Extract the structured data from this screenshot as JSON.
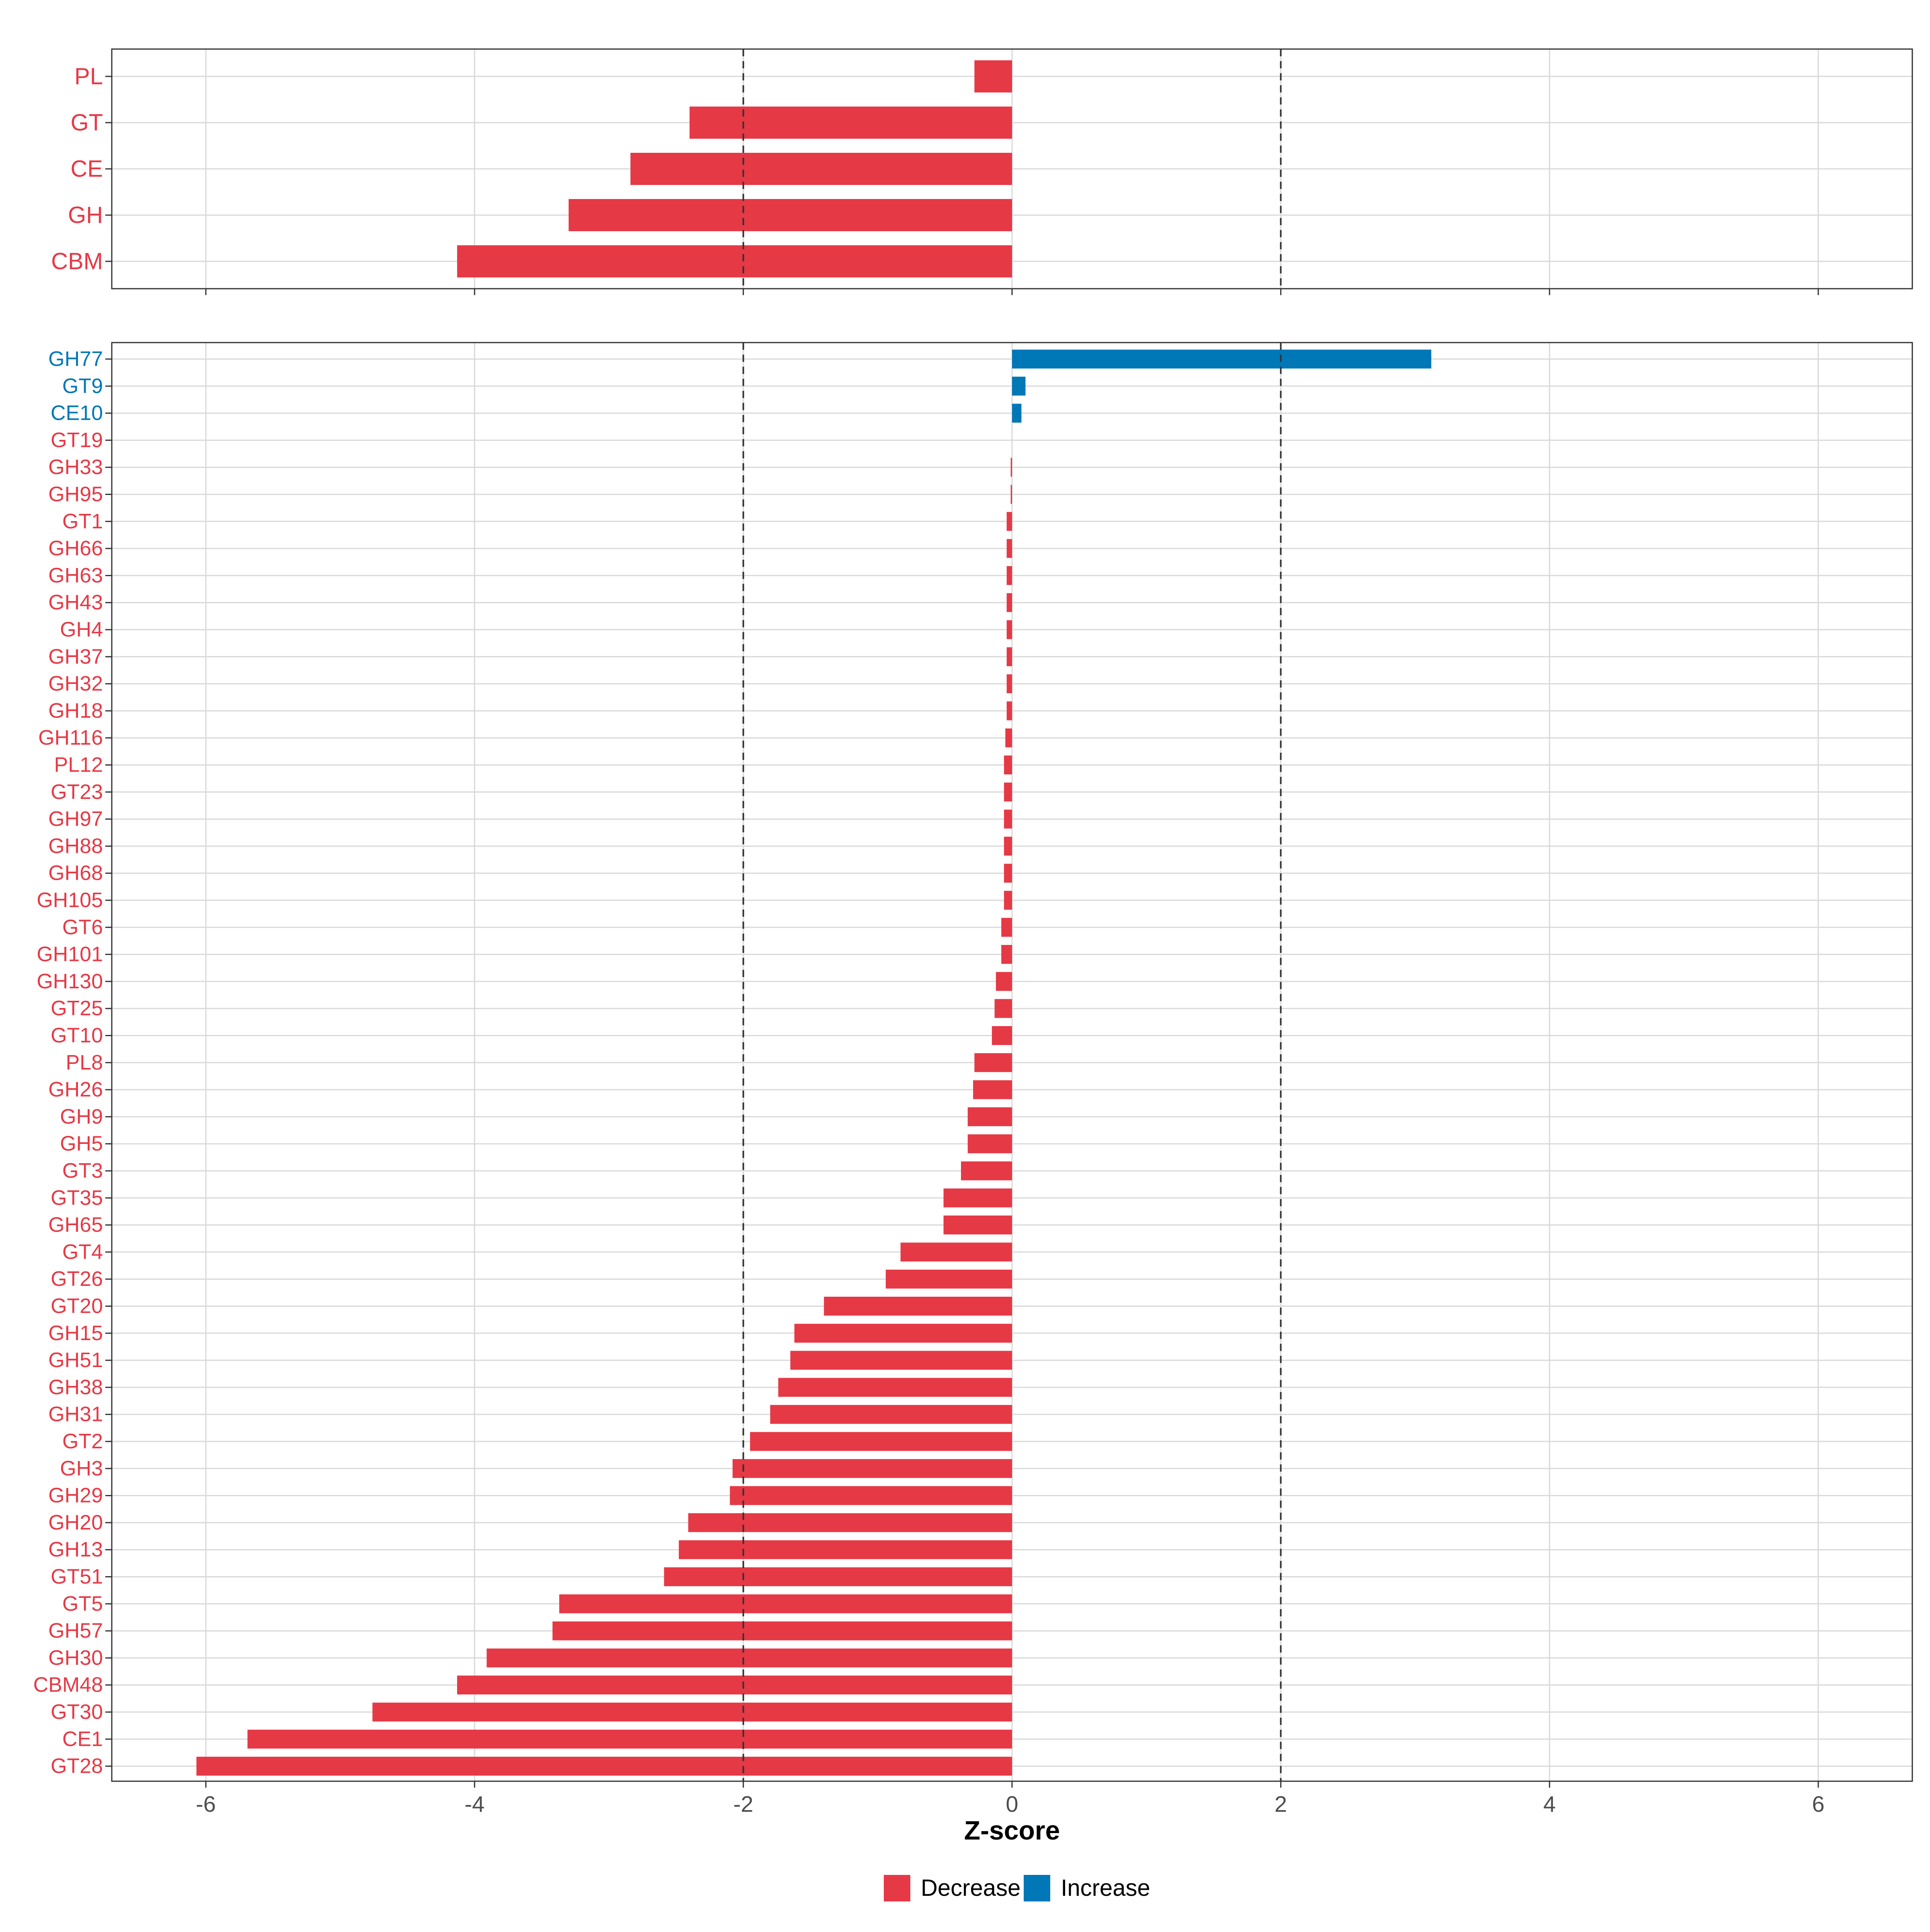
{
  "colors": {
    "decrease": "#E63946",
    "increase": "#0077B6",
    "grid": "#D9D9D9",
    "panel_border": "#333333",
    "ref_line": "#333333"
  },
  "legend": {
    "decrease_label": "Decrease",
    "increase_label": "Increase"
  },
  "chart_data": [
    {
      "type": "bar",
      "orientation": "horizontal",
      "panel": "top",
      "title": "",
      "xlabel": "",
      "xlim": [
        -6.7,
        6.7
      ],
      "xticks": [
        -6,
        -4,
        -2,
        0,
        2,
        4,
        6
      ],
      "show_tick_labels": false,
      "reference_lines": [
        -2,
        2
      ],
      "grid": true,
      "categories": [
        "PL",
        "GT",
        "CE",
        "GH",
        "CBM"
      ],
      "values": [
        -0.28,
        -2.4,
        -2.84,
        -3.3,
        -4.13
      ],
      "directions": [
        "Decrease",
        "Decrease",
        "Decrease",
        "Decrease",
        "Decrease"
      ]
    },
    {
      "type": "bar",
      "orientation": "horizontal",
      "panel": "bottom",
      "title": "",
      "xlabel": "Z-score",
      "xlim": [
        -6.7,
        6.7
      ],
      "xticks": [
        -6,
        -4,
        -2,
        0,
        2,
        4,
        6
      ],
      "show_tick_labels": true,
      "reference_lines": [
        -2,
        2
      ],
      "grid": true,
      "categories": [
        "GH77",
        "GT9",
        "CE10",
        "GT19",
        "GH33",
        "GH95",
        "GT1",
        "GH66",
        "GH63",
        "GH43",
        "GH4",
        "GH37",
        "GH32",
        "GH18",
        "GH116",
        "PL12",
        "GT23",
        "GH97",
        "GH88",
        "GH68",
        "GH105",
        "GT6",
        "GH101",
        "GH130",
        "GT25",
        "GT10",
        "PL8",
        "GH26",
        "GH9",
        "GH5",
        "GT3",
        "GT35",
        "GH65",
        "GT4",
        "GT26",
        "GT20",
        "GH15",
        "GH51",
        "GH38",
        "GH31",
        "GT2",
        "GH3",
        "GH29",
        "GH20",
        "GH13",
        "GT51",
        "GT5",
        "GH57",
        "GH30",
        "CBM48",
        "GT30",
        "CE1",
        "GT28"
      ],
      "values": [
        3.12,
        0.1,
        0.07,
        0.0,
        -0.01,
        -0.01,
        -0.04,
        -0.04,
        -0.04,
        -0.04,
        -0.04,
        -0.04,
        -0.04,
        -0.04,
        -0.05,
        -0.06,
        -0.06,
        -0.06,
        -0.06,
        -0.06,
        -0.06,
        -0.08,
        -0.08,
        -0.12,
        -0.13,
        -0.15,
        -0.28,
        -0.29,
        -0.33,
        -0.33,
        -0.38,
        -0.51,
        -0.51,
        -0.83,
        -0.94,
        -1.4,
        -1.62,
        -1.65,
        -1.74,
        -1.8,
        -1.95,
        -2.08,
        -2.1,
        -2.41,
        -2.48,
        -2.59,
        -3.37,
        -3.42,
        -3.91,
        -4.13,
        -4.76,
        -5.69,
        -6.07
      ],
      "directions": [
        "Increase",
        "Increase",
        "Increase",
        "Decrease",
        "Decrease",
        "Decrease",
        "Decrease",
        "Decrease",
        "Decrease",
        "Decrease",
        "Decrease",
        "Decrease",
        "Decrease",
        "Decrease",
        "Decrease",
        "Decrease",
        "Decrease",
        "Decrease",
        "Decrease",
        "Decrease",
        "Decrease",
        "Decrease",
        "Decrease",
        "Decrease",
        "Decrease",
        "Decrease",
        "Decrease",
        "Decrease",
        "Decrease",
        "Decrease",
        "Decrease",
        "Decrease",
        "Decrease",
        "Decrease",
        "Decrease",
        "Decrease",
        "Decrease",
        "Decrease",
        "Decrease",
        "Decrease",
        "Decrease",
        "Decrease",
        "Decrease",
        "Decrease",
        "Decrease",
        "Decrease",
        "Decrease",
        "Decrease",
        "Decrease",
        "Decrease",
        "Decrease",
        "Decrease",
        "Decrease"
      ]
    }
  ]
}
